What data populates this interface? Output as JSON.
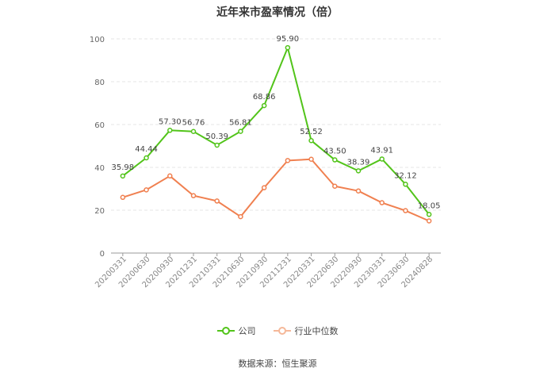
{
  "chart_data": {
    "type": "line",
    "title": "近年来市盈率情况（倍）",
    "categories": [
      "20200331",
      "20200630",
      "20200930",
      "20201231",
      "20210331",
      "20210630",
      "20210930",
      "20211231",
      "20220331",
      "20220630",
      "20220930",
      "20230331",
      "20230630",
      "20240828"
    ],
    "series": [
      {
        "name": "公司",
        "color": "#52c41a",
        "values": [
          35.98,
          44.44,
          57.3,
          56.76,
          50.39,
          56.81,
          68.86,
          95.9,
          52.52,
          43.5,
          38.39,
          43.91,
          32.12,
          18.05
        ],
        "labels": [
          "35.98",
          "44.44",
          "57.30",
          "56.76",
          "50.39",
          "56.81",
          "68.86",
          "95.90",
          "52.52",
          "43.50",
          "38.39",
          "43.91",
          "32.12",
          "18.05"
        ]
      },
      {
        "name": "行业中位数",
        "color": "#f08050",
        "values": [
          26.0,
          29.5,
          36.0,
          26.8,
          24.3,
          17.0,
          30.5,
          43.2,
          43.8,
          31.2,
          29.0,
          23.5,
          19.8,
          15.0
        ]
      }
    ],
    "yticks": [
      0,
      20,
      40,
      60,
      80,
      100
    ],
    "ylim": [
      0,
      100
    ],
    "grid": true,
    "legend": "bottom"
  },
  "source": "数据来源：恒生聚源"
}
